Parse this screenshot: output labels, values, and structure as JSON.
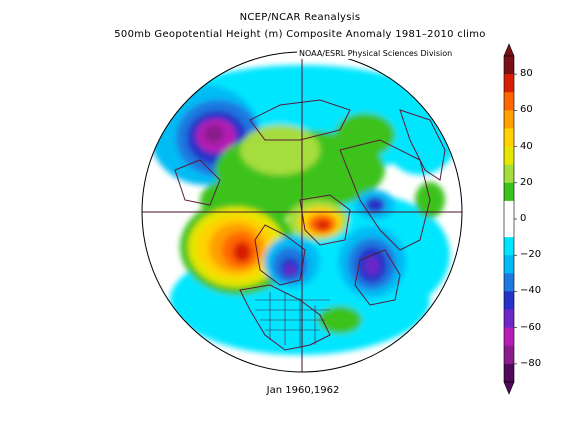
{
  "title": {
    "line1": "NCEP/NCAR Reanalysis",
    "line2": "500mb Geopotential Height (m) Composite Anomaly 1981–2010 climo"
  },
  "credit": "NOAA/ESRL Physical Sciences Division",
  "footer": "Jan 1960,1962",
  "colorbar": {
    "labels": [
      "80",
      "60",
      "40",
      "20",
      "0",
      "−20",
      "−40",
      "−60",
      "−80"
    ],
    "colors": [
      "#781016",
      "#d81e05",
      "#ff6600",
      "#ff9f00",
      "#ffd200",
      "#e6e600",
      "#a4dd3c",
      "#3cc21e",
      "#ffffff",
      "#ffffff",
      "#00e6ff",
      "#00bbf4",
      "#1e78e0",
      "#2832c8",
      "#6e28c8",
      "#b41eb4",
      "#8a1c8c",
      "#500a5a"
    ]
  },
  "map": {
    "projection": "north polar stereographic",
    "anomalies": [
      {
        "region": "North Pacific / Aleutians",
        "value": -70,
        "color": "#b41eb4"
      },
      {
        "region": "Western North America / Alaska",
        "value": 65,
        "color": "#d81e05"
      },
      {
        "region": "Hudson Bay / Eastern Canada",
        "value": -65,
        "color": "#6e28c8"
      },
      {
        "region": "Greenland / Arctic",
        "value": 70,
        "color": "#d81e05"
      },
      {
        "region": "Northern Europe / Scandinavia",
        "value": -60,
        "color": "#6e28c8"
      },
      {
        "region": "Siberia / Arctic Ocean",
        "value": 20,
        "color": "#3cc21e"
      },
      {
        "region": "Atlantic / Eastern Europe",
        "value": -45,
        "color": "#2832c8"
      }
    ]
  }
}
